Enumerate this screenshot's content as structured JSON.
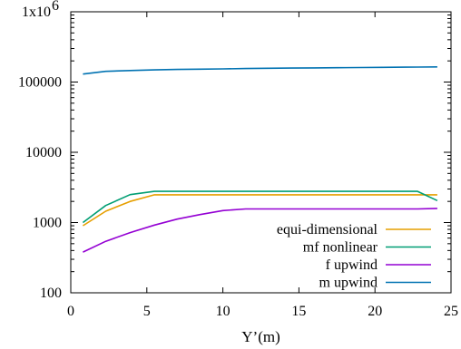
{
  "chart_data": {
    "type": "line",
    "xlabel": "Y’(m)",
    "ylabel": "",
    "xlim": [
      0,
      25
    ],
    "ylim": [
      100,
      1000000
    ],
    "yscale": "log",
    "grid": false,
    "legend_position": "bottom-right",
    "x_ticks": [
      0,
      5,
      10,
      15,
      20,
      25
    ],
    "x_tick_labels": [
      "0",
      "5",
      "10",
      "15",
      "20",
      "25"
    ],
    "y_ticks": [
      100,
      1000,
      10000,
      100000,
      1000000
    ],
    "y_tick_labels": [
      "100",
      "1000",
      "10000",
      "100000",
      "1x10"
    ],
    "y_top_exponent": "6",
    "series": [
      {
        "name": "equi-dimensional",
        "color": "#e69f00",
        "x": [
          0.8,
          2.3,
          3.9,
          5.5,
          7,
          8.5,
          10,
          11.5,
          13,
          14.5,
          16,
          17.5,
          19,
          20.5,
          22,
          22.8,
          24.1
        ],
        "y": [
          900,
          1450,
          2000,
          2480,
          2480,
          2480,
          2480,
          2480,
          2480,
          2480,
          2480,
          2480,
          2480,
          2480,
          2480,
          2480,
          2480
        ]
      },
      {
        "name": "mf nonlinear",
        "color": "#009e73",
        "x": [
          0.8,
          2.3,
          3.9,
          5.5,
          7,
          8.5,
          10,
          11.5,
          13,
          14.5,
          16,
          17.5,
          19,
          20.5,
          22,
          22.8,
          24.1
        ],
        "y": [
          1000,
          1750,
          2500,
          2780,
          2780,
          2780,
          2780,
          2780,
          2780,
          2780,
          2780,
          2780,
          2780,
          2780,
          2780,
          2780,
          2050
        ]
      },
      {
        "name": "f upwind",
        "color": "#9400d3",
        "x": [
          0.8,
          2.3,
          3.9,
          5.5,
          7,
          8.5,
          10,
          11.5,
          13,
          14.5,
          16,
          17.5,
          19,
          20.5,
          22,
          22.8,
          24.1
        ],
        "y": [
          380,
          540,
          720,
          920,
          1120,
          1300,
          1480,
          1560,
          1560,
          1560,
          1560,
          1560,
          1560,
          1560,
          1560,
          1560,
          1590
        ]
      },
      {
        "name": "m upwind",
        "color": "#0072b2",
        "x": [
          0.8,
          2.3,
          3.9,
          5.5,
          7,
          8.5,
          10,
          11.5,
          13,
          14.5,
          16,
          17.5,
          19,
          20.5,
          22,
          22.8,
          24.1
        ],
        "y": [
          130000,
          142000,
          146000,
          149000,
          151000,
          152500,
          154000,
          155500,
          157000,
          158000,
          159000,
          160000,
          161000,
          162000,
          163000,
          163500,
          164000
        ]
      }
    ]
  }
}
